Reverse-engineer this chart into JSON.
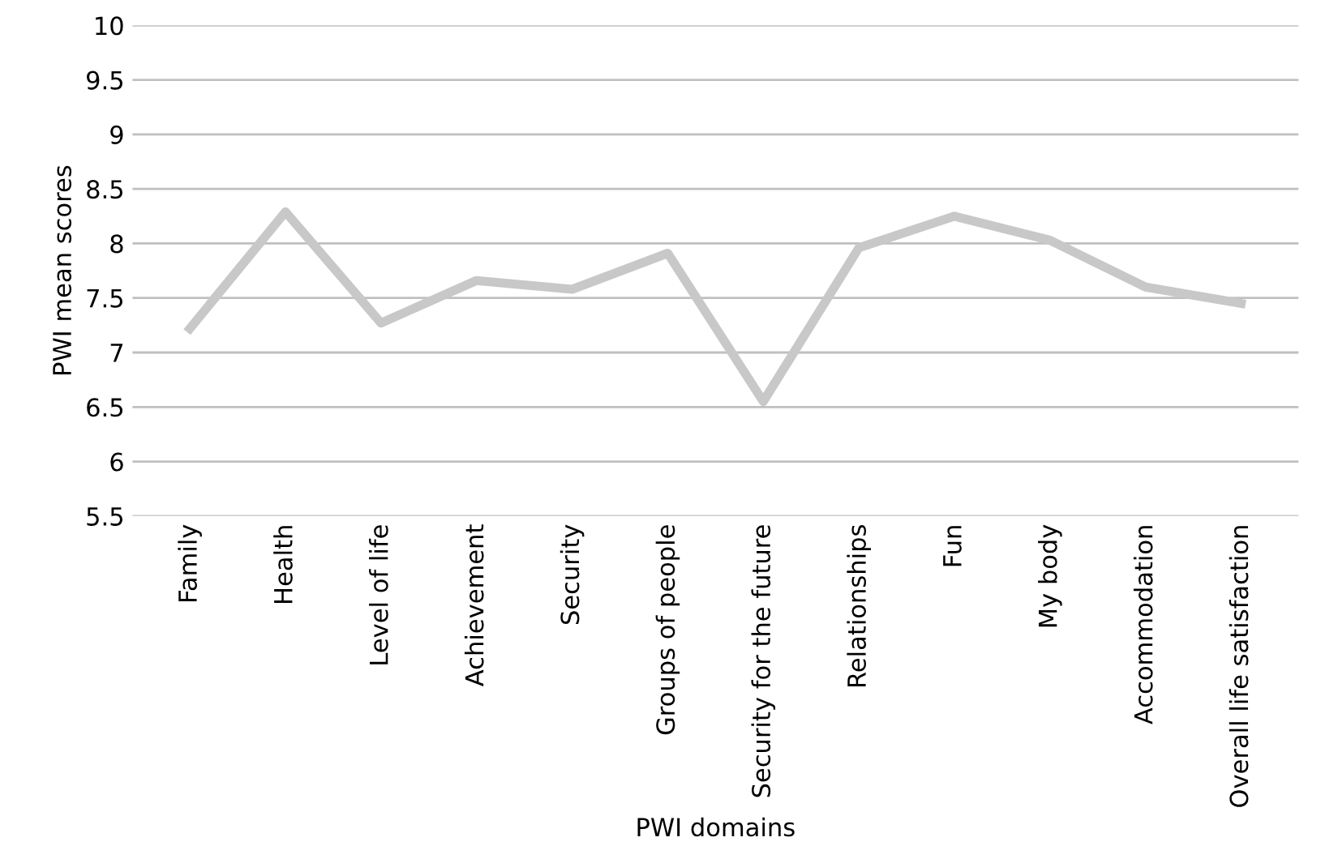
{
  "chart_data": {
    "type": "line",
    "xlabel": "PWI domains",
    "ylabel": "PWI mean scores",
    "categories": [
      "Family",
      "Health",
      "Level of life",
      "Achievement",
      "Security",
      "Groups of people",
      "Security for the future",
      "Relationships",
      "Fun",
      "My body",
      "Accommodation",
      "Overall life satisfaction"
    ],
    "series": [
      {
        "color": "#c8c8c8",
        "values": [
          7.22,
          8.29,
          7.27,
          7.66,
          7.58,
          7.91,
          6.55,
          7.96,
          8.25,
          8.03,
          7.6,
          7.45
        ]
      }
    ],
    "ylim": [
      5.5,
      10
    ],
    "yticks": [
      5.5,
      6,
      6.5,
      7,
      7.5,
      8,
      8.5,
      9,
      9.5,
      10
    ],
    "grid": "y",
    "legend": false,
    "marker": "none",
    "line_style": "solid"
  }
}
